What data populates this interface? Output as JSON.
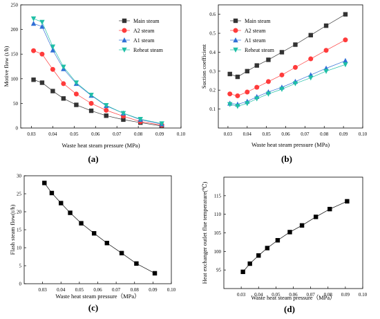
{
  "colors": {
    "main": "#333333",
    "a2": "#ff3b3b",
    "a1": "#2f6fd6",
    "reheat": "#1fbfa6",
    "black": "#000000"
  },
  "chart_data": [
    {
      "panel": "(a)",
      "type": "line",
      "xlabel": "Waste heat steam pressure (MPa)",
      "ylabel": "Motive flow (t/h)",
      "xlim": [
        0.025,
        0.1
      ],
      "ylim": [
        0,
        250
      ],
      "xticks": [
        "0.03",
        "0.04",
        "0.05",
        "0.06",
        "0.07",
        "0.08",
        "0.09",
        "0.10"
      ],
      "yticks": [
        "0",
        "50",
        "100",
        "150",
        "200",
        "250"
      ],
      "legend": "top-right",
      "x": [
        0.031,
        0.035,
        0.04,
        0.045,
        0.051,
        0.058,
        0.065,
        0.073,
        0.081,
        0.091
      ],
      "series": [
        {
          "name": "Main steam",
          "marker": "square",
          "color_key": "main",
          "values": [
            98,
            92,
            75,
            60,
            47,
            35,
            25,
            17,
            11,
            4
          ]
        },
        {
          "name": "A2 steam",
          "marker": "circle",
          "color_key": "a2",
          "values": [
            157,
            150,
            119,
            90,
            69,
            50,
            36,
            24,
            13,
            6
          ]
        },
        {
          "name": "A1 steam",
          "marker": "triangle-up",
          "color_key": "a1",
          "values": [
            212,
            206,
            158,
            120,
            90,
            66,
            45,
            30,
            17,
            8
          ]
        },
        {
          "name": "Reheat steam",
          "marker": "triangle-down",
          "color_key": "reheat",
          "values": [
            222,
            215,
            165,
            124,
            92,
            67,
            46,
            30,
            18,
            9
          ]
        }
      ]
    },
    {
      "panel": "(b)",
      "type": "line",
      "xlabel": "Waste heat steam pressure (MPa)",
      "ylabel": "Suction coefficient",
      "xlim": [
        0.025,
        0.1
      ],
      "ylim": [
        0.0,
        0.65
      ],
      "xticks": [
        "0.03",
        "0.04",
        "0.05",
        "0.06",
        "0.07",
        "0.08",
        "0.09",
        "0.10"
      ],
      "yticks": [
        "0.1",
        "0.2",
        "0.3",
        "0.4",
        "0.5",
        "0.6"
      ],
      "legend": "top-left",
      "x": [
        0.031,
        0.035,
        0.04,
        0.045,
        0.051,
        0.058,
        0.065,
        0.073,
        0.081,
        0.091
      ],
      "series": [
        {
          "name": "Main steam",
          "marker": "square",
          "color_key": "main",
          "values": [
            0.285,
            0.27,
            0.3,
            0.33,
            0.36,
            0.4,
            0.44,
            0.49,
            0.54,
            0.6
          ]
        },
        {
          "name": "A2 steam",
          "marker": "circle",
          "color_key": "a2",
          "values": [
            0.18,
            0.17,
            0.19,
            0.215,
            0.245,
            0.28,
            0.32,
            0.365,
            0.41,
            0.465
          ]
        },
        {
          "name": "A1 steam",
          "marker": "triangle-up",
          "color_key": "a1",
          "values": [
            0.13,
            0.125,
            0.14,
            0.165,
            0.19,
            0.215,
            0.245,
            0.28,
            0.315,
            0.355
          ]
        },
        {
          "name": "Reheat steam",
          "marker": "triangle-down",
          "color_key": "reheat",
          "values": [
            0.125,
            0.115,
            0.13,
            0.155,
            0.18,
            0.205,
            0.235,
            0.265,
            0.3,
            0.335
          ]
        }
      ]
    },
    {
      "panel": "(c)",
      "type": "line",
      "xlabel": "Waste heat steam pressure（MPa）",
      "ylabel": "Flash steam flow(t/h)",
      "xlim": [
        0.02,
        0.1
      ],
      "ylim": [
        0,
        30
      ],
      "xticks": [
        "0.03",
        "0.04",
        "0.05",
        "0.06",
        "0.07",
        "0.08",
        "0.09",
        "0.10"
      ],
      "yticks": [
        "0",
        "5",
        "10",
        "15",
        "20",
        "25",
        "30"
      ],
      "x": [
        0.031,
        0.035,
        0.04,
        0.045,
        0.051,
        0.058,
        0.065,
        0.073,
        0.081,
        0.091
      ],
      "series": [
        {
          "marker": "square",
          "color_key": "black",
          "values": [
            28.0,
            25.2,
            22.4,
            19.7,
            16.8,
            14.0,
            11.3,
            8.5,
            5.6,
            2.9
          ]
        }
      ]
    },
    {
      "panel": "(d)",
      "type": "line",
      "xlabel": "Waste heat steam pressure（MPa）",
      "ylabel": "Heat exchanger outlet flue temperature(℃)",
      "xlim": [
        0.02,
        0.1
      ],
      "ylim": [
        90,
        120
      ],
      "xticks": [
        "0.03",
        "0.04",
        "0.05",
        "0.06",
        "0.07",
        "0.08",
        "0.09",
        "0.10"
      ],
      "yticks": [
        "95",
        "100",
        "105",
        "110",
        "115"
      ],
      "x": [
        0.031,
        0.035,
        0.04,
        0.045,
        0.051,
        0.058,
        0.065,
        0.073,
        0.081,
        0.091
      ],
      "series": [
        {
          "marker": "square",
          "color_key": "black",
          "values": [
            94.5,
            96.7,
            98.9,
            100.9,
            103.0,
            105.2,
            107.0,
            109.3,
            111.4,
            113.5
          ]
        }
      ]
    }
  ]
}
